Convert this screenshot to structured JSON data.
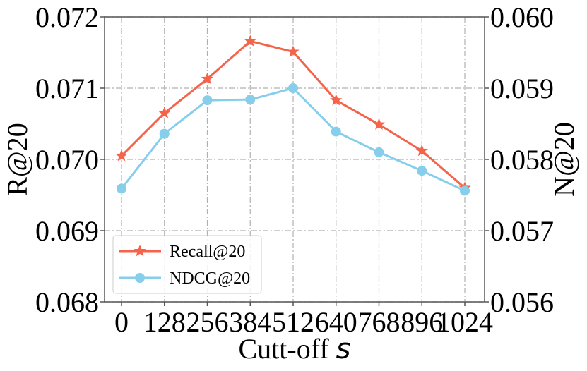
{
  "chart_data": {
    "type": "line",
    "xlabel": "Cutt-off",
    "xlabel_symbol": "s",
    "ylabel_left": "R@20",
    "ylabel_right": "N@20",
    "categories": [
      "0",
      "128",
      "256",
      "384",
      "512",
      "640",
      "768",
      "896",
      "1024"
    ],
    "ylim_left": [
      0.068,
      0.072
    ],
    "ylim_right": [
      0.056,
      0.06
    ],
    "yticks_left": [
      "0.068",
      "0.069",
      "0.070",
      "0.071",
      "0.072"
    ],
    "yticks_right": [
      "0.056",
      "0.057",
      "0.058",
      "0.059",
      "0.060"
    ],
    "grid": true,
    "legend_position": "lower-left",
    "series": [
      {
        "name": "Recall@20",
        "axis": "left",
        "marker": "star",
        "color": "#f4634a",
        "values": [
          0.07005,
          0.07065,
          0.07113,
          0.07166,
          0.07151,
          0.07083,
          0.07049,
          0.07012,
          0.0696
        ]
      },
      {
        "name": "NDCG@20",
        "axis": "right",
        "marker": "circle",
        "color": "#87ceeb",
        "values": [
          0.05759,
          0.05836,
          0.05883,
          0.05884,
          0.059,
          0.05839,
          0.0581,
          0.05784,
          0.05756
        ]
      }
    ]
  }
}
